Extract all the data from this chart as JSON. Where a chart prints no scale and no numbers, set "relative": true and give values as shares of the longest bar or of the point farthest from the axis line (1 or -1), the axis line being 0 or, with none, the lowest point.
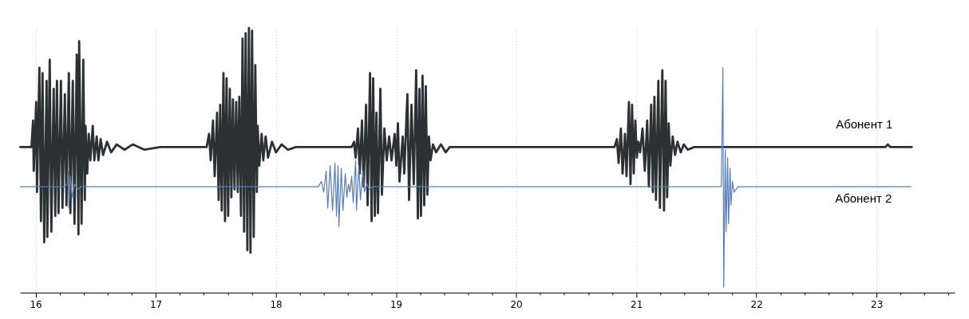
{
  "chart_data": {
    "type": "line",
    "relative": true,
    "grid": "x",
    "xlim": [
      15.87,
      23.65
    ],
    "xticks": [
      16,
      {
        "value": 16.2,
        "label": null
      },
      {
        "value": 16.4,
        "label": null
      },
      {
        "value": 16.6,
        "label": null
      },
      {
        "value": 16.8,
        "label": null
      },
      17,
      {
        "value": 17.2,
        "label": null
      },
      {
        "value": 17.4,
        "label": null
      },
      {
        "value": 17.6,
        "label": null
      },
      {
        "value": 17.8,
        "label": null
      },
      18,
      {
        "value": 18.2,
        "label": null
      },
      {
        "value": 18.4,
        "label": null
      },
      {
        "value": 18.6,
        "label": null
      },
      {
        "value": 18.8,
        "label": null
      },
      19,
      {
        "value": 19.2,
        "label": null
      },
      {
        "value": 19.4,
        "label": null
      },
      {
        "value": 19.6,
        "label": null
      },
      {
        "value": 19.8,
        "label": null
      },
      20,
      {
        "value": 20.2,
        "label": null
      },
      {
        "value": 20.4,
        "label": null
      },
      {
        "value": 20.6,
        "label": null
      },
      {
        "value": 20.8,
        "label": null
      },
      21,
      {
        "value": 21.2,
        "label": null
      },
      {
        "value": 21.4,
        "label": null
      },
      {
        "value": 21.6,
        "label": null
      },
      {
        "value": 21.8,
        "label": null
      },
      22,
      {
        "value": 22.2,
        "label": null
      },
      {
        "value": 22.4,
        "label": null
      },
      {
        "value": 22.6,
        "label": null
      },
      {
        "value": 22.8,
        "label": null
      },
      23,
      {
        "value": 23.2,
        "label": null
      },
      {
        "value": 23.4,
        "label": null
      },
      {
        "value": 23.6,
        "label": null
      }
    ],
    "series": [
      {
        "name": "Абонент 1",
        "color": "#2b3033",
        "x": [
          15.873,
          15.966,
          15.979,
          15.985,
          16.005,
          16.012,
          16.032,
          16.045,
          16.058,
          16.072,
          16.092,
          16.098,
          16.118,
          16.131,
          16.151,
          16.164,
          16.178,
          16.191,
          16.211,
          16.224,
          16.244,
          16.257,
          16.277,
          16.29,
          16.31,
          16.324,
          16.343,
          16.357,
          16.363,
          16.383,
          16.397,
          16.41,
          16.416,
          16.43,
          16.443,
          16.456,
          16.476,
          16.489,
          16.509,
          16.523,
          16.542,
          16.562,
          16.595,
          16.629,
          16.675,
          16.741,
          16.808,
          16.907,
          17.04,
          17.424,
          17.444,
          17.458,
          17.477,
          17.491,
          17.511,
          17.524,
          17.537,
          17.55,
          17.564,
          17.577,
          17.59,
          17.603,
          17.617,
          17.63,
          17.643,
          17.656,
          17.67,
          17.683,
          17.696,
          17.71,
          17.723,
          17.736,
          17.749,
          17.763,
          17.776,
          17.789,
          17.802,
          17.816,
          17.829,
          17.842,
          17.849,
          17.862,
          17.882,
          17.895,
          17.915,
          17.935,
          17.968,
          18.001,
          18.048,
          18.101,
          18.167,
          18.2,
          18.631,
          18.651,
          18.664,
          18.684,
          18.698,
          18.717,
          18.731,
          18.751,
          18.764,
          18.784,
          18.797,
          18.81,
          18.824,
          18.837,
          18.85,
          18.87,
          18.883,
          18.903,
          18.923,
          18.943,
          18.963,
          18.989,
          19.003,
          19.016,
          19.029,
          19.056,
          19.069,
          19.095,
          19.109,
          19.129,
          19.148,
          19.168,
          19.182,
          19.195,
          19.208,
          19.221,
          19.235,
          19.248,
          19.261,
          19.274,
          19.288,
          19.308,
          19.334,
          19.374,
          19.414,
          19.447,
          20.819,
          20.839,
          20.853,
          20.872,
          20.886,
          20.906,
          20.919,
          20.939,
          20.952,
          20.965,
          20.979,
          20.992,
          21.005,
          21.018,
          21.032,
          21.052,
          21.071,
          21.091,
          21.105,
          21.124,
          21.138,
          21.151,
          21.164,
          21.184,
          21.197,
          21.217,
          21.231,
          21.244,
          21.257,
          21.27,
          21.284,
          21.303,
          21.323,
          21.343,
          21.37,
          21.396,
          21.429,
          21.483,
          23.074,
          23.094,
          23.114,
          23.293
        ],
        "values": [
          0.55,
          0.55,
          0.65,
          0.46,
          0.72,
          0.38,
          0.85,
          0.27,
          0.83,
          0.19,
          0.8,
          0.21,
          0.88,
          0.23,
          0.77,
          0.29,
          0.8,
          0.3,
          0.8,
          0.32,
          0.75,
          0.33,
          0.83,
          0.3,
          0.8,
          0.26,
          0.9,
          0.22,
          0.95,
          0.26,
          0.88,
          0.35,
          0.63,
          0.45,
          0.6,
          0.5,
          0.63,
          0.5,
          0.59,
          0.5,
          0.58,
          0.52,
          0.57,
          0.53,
          0.56,
          0.54,
          0.56,
          0.54,
          0.55,
          0.55,
          0.6,
          0.5,
          0.65,
          0.44,
          0.68,
          0.35,
          0.71,
          0.31,
          0.83,
          0.27,
          0.81,
          0.29,
          0.77,
          0.36,
          0.73,
          0.39,
          0.72,
          0.38,
          0.74,
          0.29,
          0.96,
          0.23,
          0.98,
          0.16,
          1.0,
          0.15,
          0.99,
          0.21,
          0.86,
          0.38,
          0.63,
          0.48,
          0.6,
          0.5,
          0.59,
          0.51,
          0.57,
          0.53,
          0.56,
          0.54,
          0.55,
          0.55,
          0.55,
          0.57,
          0.51,
          0.62,
          0.45,
          0.65,
          0.4,
          0.71,
          0.33,
          0.83,
          0.27,
          0.81,
          0.29,
          0.68,
          0.3,
          0.77,
          0.37,
          0.62,
          0.5,
          0.59,
          0.5,
          0.6,
          0.48,
          0.64,
          0.42,
          0.59,
          0.45,
          0.75,
          0.35,
          0.71,
          0.41,
          0.84,
          0.28,
          0.77,
          0.29,
          0.82,
          0.33,
          0.78,
          0.37,
          0.59,
          0.5,
          0.56,
          0.53,
          0.56,
          0.53,
          0.55,
          0.55,
          0.58,
          0.49,
          0.62,
          0.45,
          0.6,
          0.44,
          0.72,
          0.41,
          0.71,
          0.45,
          0.65,
          0.51,
          0.57,
          0.53,
          0.62,
          0.46,
          0.65,
          0.4,
          0.71,
          0.38,
          0.74,
          0.35,
          0.8,
          0.32,
          0.84,
          0.31,
          0.8,
          0.36,
          0.64,
          0.48,
          0.59,
          0.52,
          0.57,
          0.53,
          0.56,
          0.54,
          0.55,
          0.55,
          0.56,
          0.55,
          0.55
        ]
      },
      {
        "name": "Абонент 2",
        "color": "#5b7db3",
        "x": [
          15.873,
          16.244,
          16.264,
          16.271,
          16.277,
          16.29,
          16.304,
          16.324,
          16.35,
          16.377,
          18.353,
          18.379,
          18.399,
          18.419,
          18.432,
          18.452,
          18.472,
          18.492,
          18.505,
          18.518,
          18.525,
          18.545,
          18.558,
          18.578,
          18.591,
          18.605,
          18.618,
          18.631,
          18.644,
          18.664,
          18.671,
          18.691,
          18.704,
          18.724,
          18.737,
          18.757,
          18.777,
          18.804,
          21.708,
          21.721,
          21.728,
          21.741,
          21.748,
          21.761,
          21.768,
          21.781,
          21.788,
          21.801,
          21.814,
          21.847,
          23.286
        ],
        "values": [
          0.4,
          0.4,
          0.41,
          0.46,
          0.32,
          0.44,
          0.36,
          0.41,
          0.39,
          0.4,
          0.4,
          0.42,
          0.38,
          0.46,
          0.32,
          0.48,
          0.31,
          0.49,
          0.29,
          0.48,
          0.25,
          0.47,
          0.31,
          0.45,
          0.36,
          0.41,
          0.38,
          0.44,
          0.34,
          0.5,
          0.31,
          0.48,
          0.35,
          0.46,
          0.38,
          0.41,
          0.39,
          0.4,
          0.4,
          0.85,
          0.02,
          0.54,
          0.23,
          0.51,
          0.26,
          0.47,
          0.33,
          0.42,
          0.38,
          0.4,
          0.4
        ]
      }
    ]
  }
}
